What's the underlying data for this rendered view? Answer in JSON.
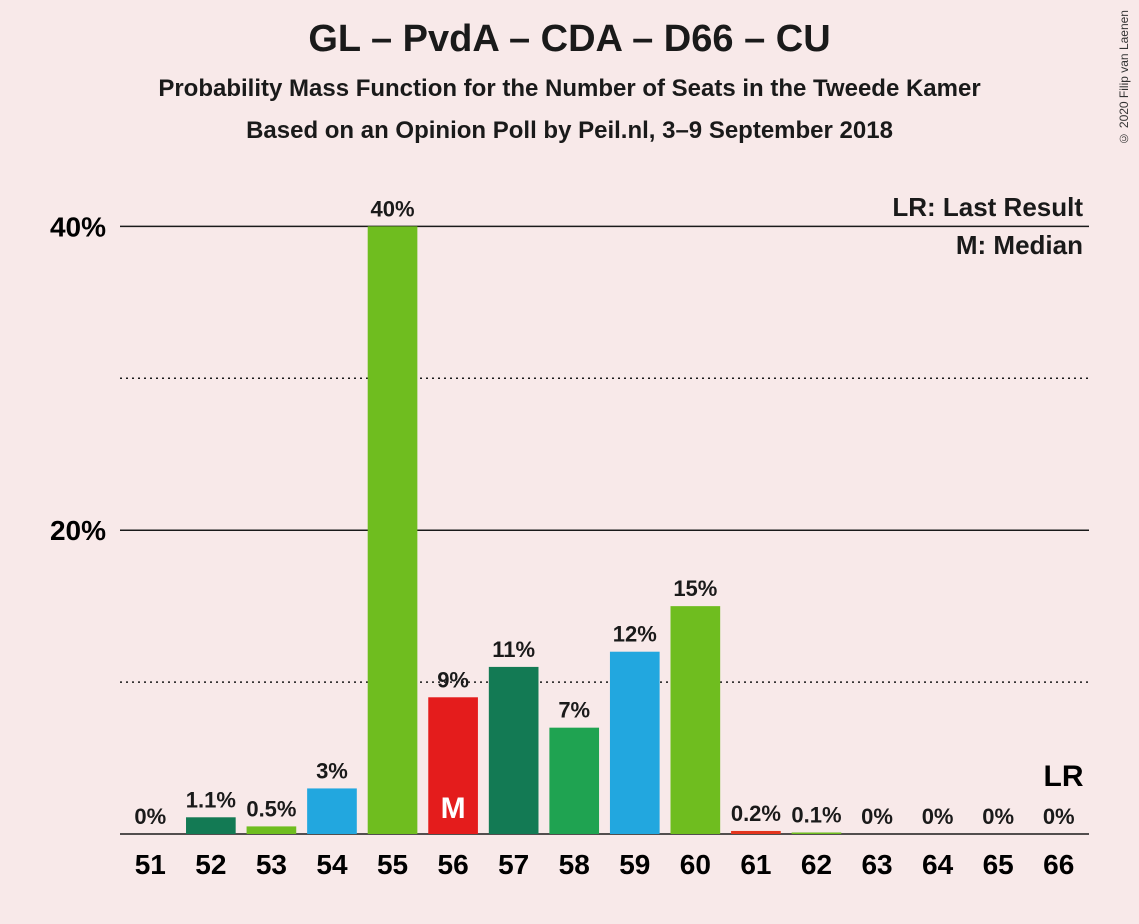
{
  "title": "GL – PvdA – CDA – D66 – CU",
  "subtitle1": "Probability Mass Function for the Number of Seats in the Tweede Kamer",
  "subtitle2": "Based on an Opinion Poll by Peil.nl, 3–9 September 2018",
  "copyright": "© 2020 Filip van Laenen",
  "legend": {
    "lr": "LR: Last Result",
    "m": "M: Median",
    "lr_short": "LR"
  },
  "median_marker": "M",
  "chart": {
    "type": "bar",
    "background_color": "#f8e9e9",
    "y_axis": {
      "min": 0,
      "max": 42,
      "major_ticks": [
        20,
        40
      ],
      "minor_ticks": [
        10,
        30
      ],
      "tick_label_format": "{v}%",
      "label_fontsize": 28
    },
    "x_axis": {
      "label_fontsize": 28
    },
    "bar_label_fontsize": 22,
    "bar_width_ratio": 0.82,
    "bars": [
      {
        "x": 51,
        "value": 0,
        "label": "0%",
        "color": "#137a54"
      },
      {
        "x": 52,
        "value": 1.1,
        "label": "1.1%",
        "color": "#137a54"
      },
      {
        "x": 53,
        "value": 0.5,
        "label": "0.5%",
        "color": "#6fbd1f"
      },
      {
        "x": 54,
        "value": 3,
        "label": "3%",
        "color": "#22a7df"
      },
      {
        "x": 55,
        "value": 40,
        "label": "40%",
        "color": "#6fbd1f"
      },
      {
        "x": 56,
        "value": 9,
        "label": "9%",
        "color": "#e41c1c",
        "median": true
      },
      {
        "x": 57,
        "value": 11,
        "label": "11%",
        "color": "#137a54"
      },
      {
        "x": 58,
        "value": 7,
        "label": "7%",
        "color": "#1fa351"
      },
      {
        "x": 59,
        "value": 12,
        "label": "12%",
        "color": "#22a7df"
      },
      {
        "x": 60,
        "value": 15,
        "label": "15%",
        "color": "#6fbd1f"
      },
      {
        "x": 61,
        "value": 0.2,
        "label": "0.2%",
        "color": "#e4341c"
      },
      {
        "x": 62,
        "value": 0.1,
        "label": "0.1%",
        "color": "#6fbd1f"
      },
      {
        "x": 63,
        "value": 0,
        "label": "0%",
        "color": "#137a54"
      },
      {
        "x": 64,
        "value": 0,
        "label": "0%",
        "color": "#137a54"
      },
      {
        "x": 65,
        "value": 0,
        "label": "0%",
        "color": "#137a54"
      },
      {
        "x": 66,
        "value": 0,
        "label": "0%",
        "color": "#137a54",
        "last_result": true
      }
    ]
  }
}
